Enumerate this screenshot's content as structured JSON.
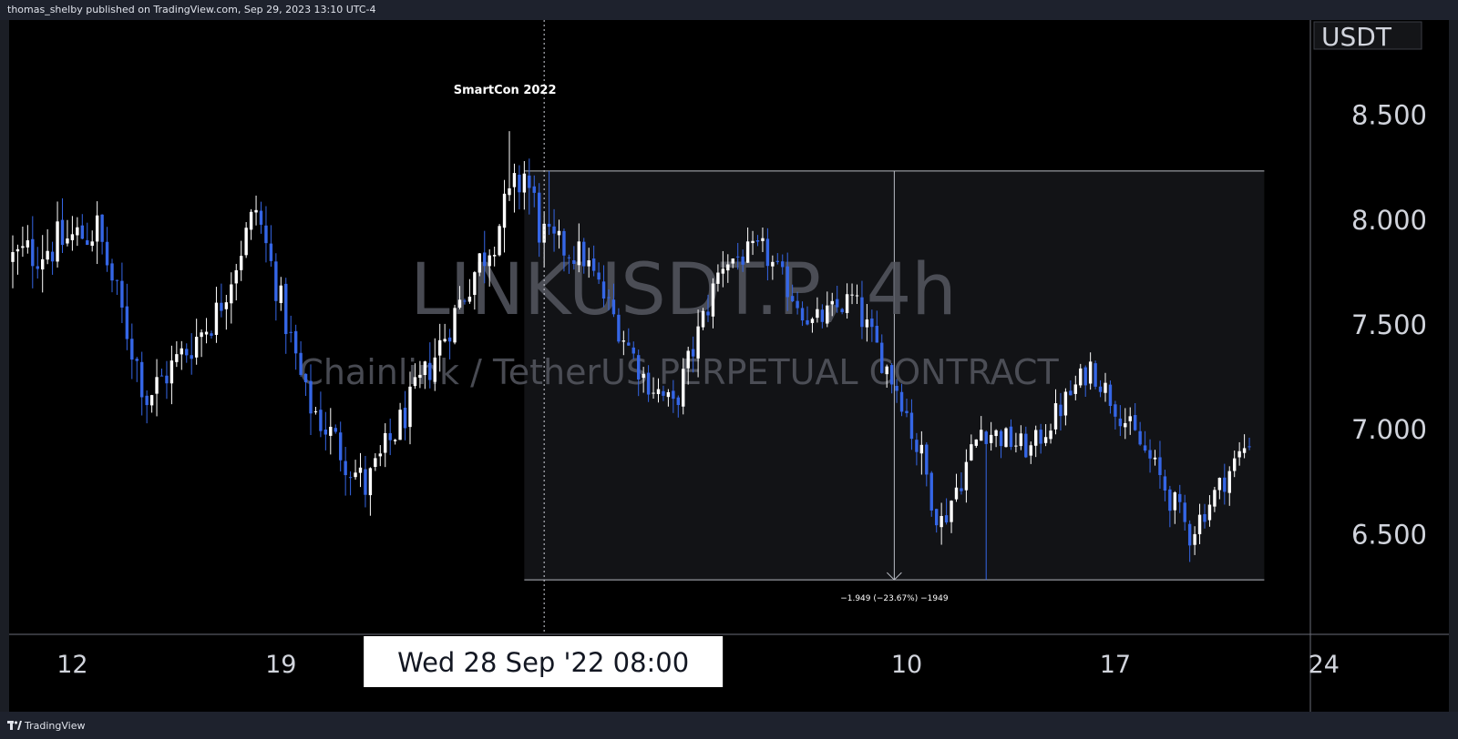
{
  "header": {
    "published_text": "thomas_shelby published on TradingView.com, Sep 29, 2023 13:10 UTC-4"
  },
  "footer": {
    "brand": "TradingView"
  },
  "chart_data": {
    "type": "candlestick",
    "watermark_symbol": "LINKUSDT.P, 4h",
    "watermark_description": "Chainlink / TetherUS PERPETUAL CONTRACT",
    "currency_label": "USDT",
    "y_ticks": [
      "8.500",
      "8.000",
      "7.500",
      "7.000",
      "6.500"
    ],
    "y_tick_values": [
      8.5,
      8.0,
      7.5,
      7.0,
      6.5
    ],
    "ylim": [
      6.02,
      8.95
    ],
    "x_ticks": [
      {
        "label": "12",
        "bar": 12
      },
      {
        "label": "19",
        "bar": 54
      },
      {
        "label": "10",
        "bar": 180
      },
      {
        "label": "17",
        "bar": 222
      },
      {
        "label": "24",
        "bar": 264
      }
    ],
    "crosshair_label": "Wed 28 Sep '22   08:00",
    "crosshair_bar": 107,
    "event": {
      "label": "SmartCon 2022",
      "bar": 107
    },
    "measure": {
      "label": "−1.949 (−23.67%) −1949",
      "start_bar": 103,
      "end_bar": 252,
      "high": 8.23,
      "low": 6.28
    },
    "ohlc_segments": [
      {
        "bars": 18,
        "from": 7.8,
        "to": 7.95,
        "vol": 0.14
      },
      {
        "bars": 10,
        "from": 7.95,
        "to": 7.15,
        "vol": 0.12
      },
      {
        "bars": 14,
        "from": 7.15,
        "to": 7.55,
        "vol": 0.12
      },
      {
        "bars": 8,
        "from": 7.55,
        "to": 8.05,
        "vol": 0.11
      },
      {
        "bars": 10,
        "from": 8.05,
        "to": 7.15,
        "vol": 0.11
      },
      {
        "bars": 12,
        "from": 7.15,
        "to": 6.72,
        "vol": 0.12
      },
      {
        "bars": 12,
        "from": 6.72,
        "to": 7.25,
        "vol": 0.11
      },
      {
        "bars": 10,
        "from": 7.25,
        "to": 7.75,
        "vol": 0.11
      },
      {
        "bars": 10,
        "from": 7.75,
        "to": 8.22,
        "vol": 0.14
      },
      {
        "bars": 4,
        "from": 8.22,
        "to": 7.9,
        "vol": 0.16
      },
      {
        "bars": 8,
        "from": 7.9,
        "to": 7.82,
        "vol": 0.1
      },
      {
        "bars": 12,
        "from": 7.82,
        "to": 7.25,
        "vol": 0.09
      },
      {
        "bars": 6,
        "from": 7.25,
        "to": 7.1,
        "vol": 0.09
      },
      {
        "bars": 10,
        "from": 7.1,
        "to": 7.8,
        "vol": 0.1
      },
      {
        "bars": 8,
        "from": 7.8,
        "to": 7.85,
        "vol": 0.08
      },
      {
        "bars": 10,
        "from": 7.85,
        "to": 7.5,
        "vol": 0.08
      },
      {
        "bars": 8,
        "from": 7.5,
        "to": 7.62,
        "vol": 0.08
      },
      {
        "bars": 10,
        "from": 7.62,
        "to": 7.15,
        "vol": 0.09
      },
      {
        "bars": 8,
        "from": 7.15,
        "to": 6.55,
        "vol": 0.12
      },
      {
        "bars": 8,
        "from": 6.55,
        "to": 7.0,
        "vol": 0.1
      },
      {
        "bars": 10,
        "from": 7.0,
        "to": 6.9,
        "vol": 0.08
      },
      {
        "bars": 12,
        "from": 6.9,
        "to": 7.3,
        "vol": 0.08
      },
      {
        "bars": 12,
        "from": 7.3,
        "to": 6.85,
        "vol": 0.08
      },
      {
        "bars": 8,
        "from": 6.85,
        "to": 6.5,
        "vol": 0.09
      },
      {
        "bars": 12,
        "from": 6.5,
        "to": 6.95,
        "vol": 0.08
      }
    ],
    "colors": {
      "up": "#ffffff",
      "down": "#3566e6",
      "background": "#000000",
      "axis_text": "#d1d4dc",
      "measure_box": "#121316",
      "measure_line": "#b8bbc3",
      "watermark": "#555861"
    }
  }
}
